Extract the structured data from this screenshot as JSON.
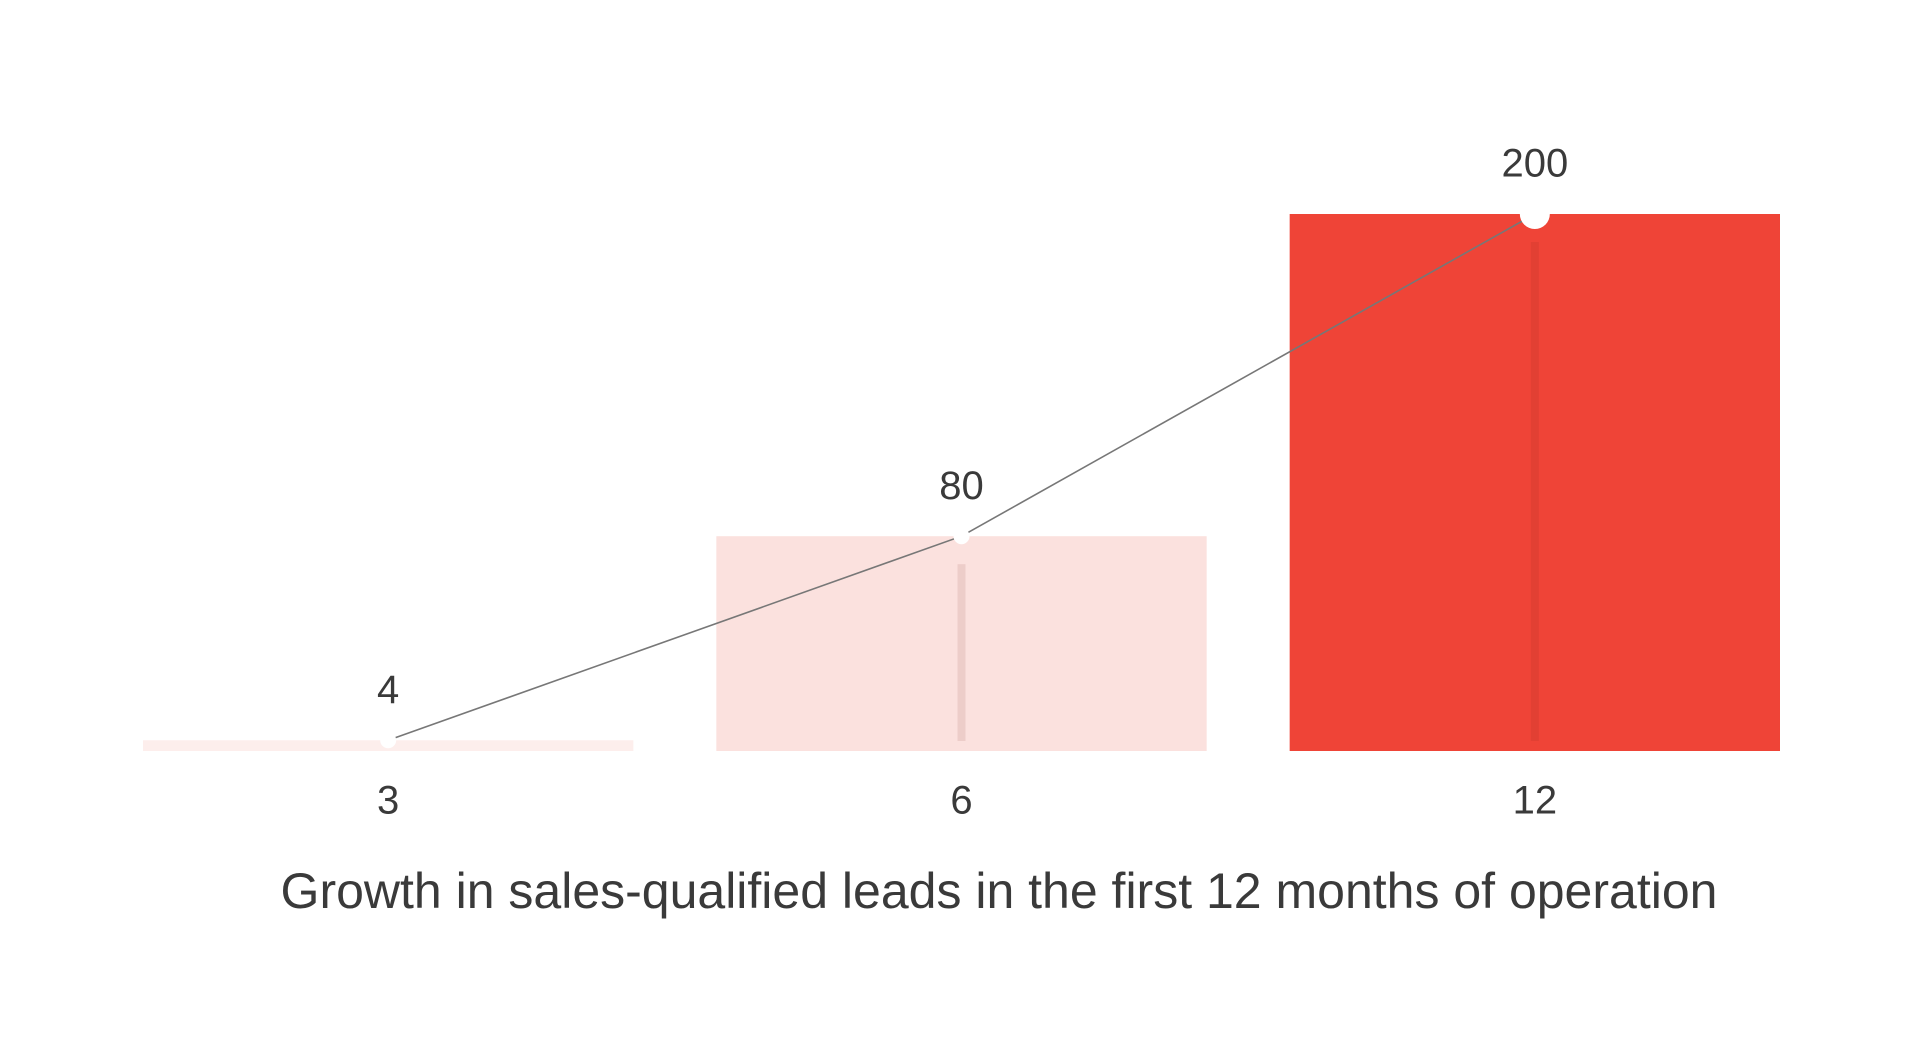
{
  "chart_data": {
    "type": "bar",
    "title": "Growth in sales-qualified leads in the first 12 months of operation",
    "categories": [
      "3",
      "6",
      "12"
    ],
    "values": [
      4,
      80,
      200
    ],
    "colors": [
      "#fdeeec",
      "#fbe1de",
      "#ef4437"
    ],
    "line_color": "#777777",
    "ylim": [
      0,
      200
    ]
  }
}
